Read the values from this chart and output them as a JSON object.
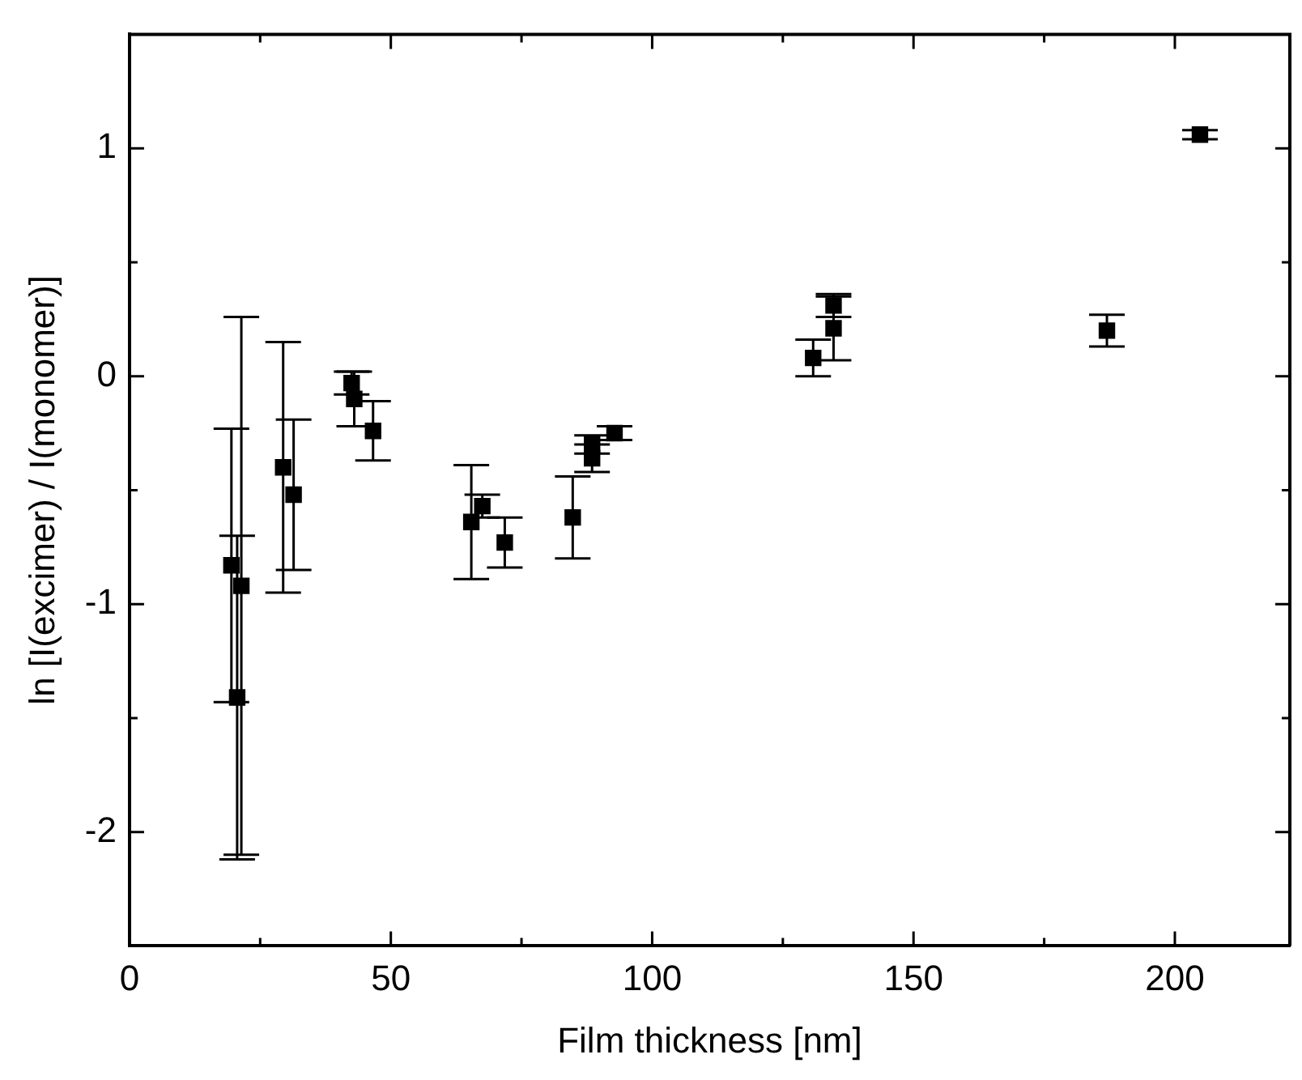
{
  "chart_data": {
    "type": "scatter",
    "xlabel": "Film thickness [nm]",
    "ylabel": "ln [I(excimer) / I(monomer)]",
    "x": [
      19.5,
      21.4,
      20.6,
      29.4,
      31.4,
      42.5,
      43,
      46.6,
      65.4,
      67.5,
      71.8,
      84.8,
      88.5,
      88.5,
      92.8,
      130.8,
      134.7,
      134.7,
      187,
      204.8
    ],
    "series": [
      {
        "color": "#000000",
        "values": [
          -0.83,
          -0.92,
          -1.41,
          -0.4,
          -0.52,
          -0.03,
          -0.1,
          -0.24,
          -0.64,
          -0.57,
          -0.73,
          -0.62,
          -0.3,
          -0.36,
          -0.25,
          0.08,
          0.21,
          0.31,
          0.2,
          1.06
        ],
        "errors": [
          0.6,
          1.18,
          0.71,
          0.55,
          0.33,
          0.05,
          0.12,
          0.13,
          0.25,
          0.05,
          0.11,
          0.18,
          0.04,
          0.06,
          0.03,
          0.08,
          0.14,
          0.05,
          0.07,
          0.02
        ]
      }
    ],
    "xlim": [
      0,
      222
    ],
    "ylim": [
      -2.5,
      1.5
    ],
    "xticks": [
      0,
      {
        "value": 25,
        "label": null
      },
      50,
      {
        "value": 75,
        "label": null
      },
      100,
      {
        "value": 125,
        "label": null
      },
      150,
      {
        "value": 175,
        "label": null
      },
      200
    ],
    "yticks": [
      {
        "value": -2.5,
        "label": null
      },
      -2,
      {
        "value": -1.5,
        "label": null
      },
      -1,
      {
        "value": -0.5,
        "label": null
      },
      0,
      {
        "value": 0.5,
        "label": null
      },
      1,
      {
        "value": 1.5,
        "label": null
      }
    ],
    "marker": "square",
    "grid": false,
    "legend": false
  }
}
